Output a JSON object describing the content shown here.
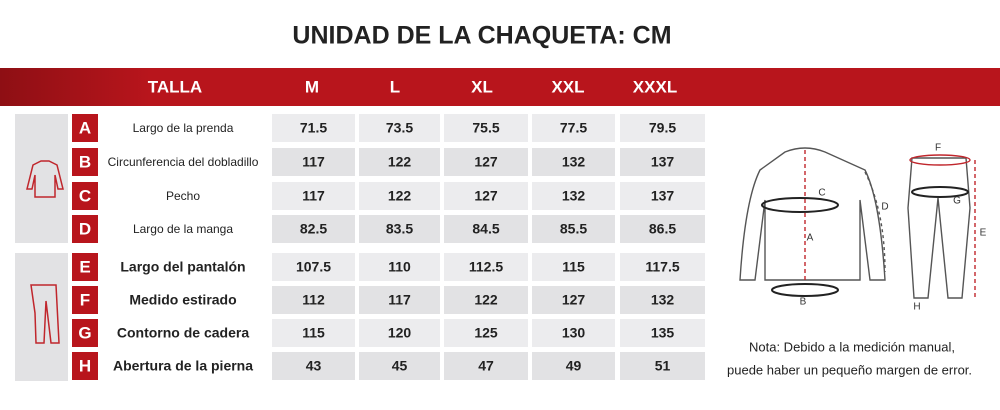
{
  "title": "UNIDAD DE LA CHAQUETA: CM",
  "table": {
    "header": [
      "TALLA",
      "M",
      "L",
      "XL",
      "XXL",
      "XXXL"
    ],
    "rows": [
      {
        "key": "A",
        "label": "Largo de la prenda",
        "values": [
          71.5,
          73.5,
          75.5,
          77.5,
          79.5
        ]
      },
      {
        "key": "B",
        "label": "Circunferencia del dobladillo",
        "values": [
          117,
          122,
          127,
          132,
          137
        ]
      },
      {
        "key": "C",
        "label": "Pecho",
        "values": [
          117,
          122,
          127,
          132,
          137
        ]
      },
      {
        "key": "D",
        "label": "Largo de la manga",
        "values": [
          82.5,
          83.5,
          84.5,
          85.5,
          86.5
        ]
      },
      {
        "key": "E",
        "label": "Largo del pantalón",
        "values": [
          107.5,
          110,
          112.5,
          115,
          117.5
        ]
      },
      {
        "key": "F",
        "label": "Medido estirado",
        "values": [
          112,
          117,
          122,
          127,
          132
        ]
      },
      {
        "key": "G",
        "label": "Contorno de cadera",
        "values": [
          115,
          120,
          125,
          130,
          135
        ]
      },
      {
        "key": "H",
        "label": "Abertura de la pierna",
        "values": [
          43,
          45,
          47,
          49,
          51
        ]
      }
    ]
  },
  "diagram": {
    "labels": [
      "C",
      "A",
      "B",
      "D",
      "F",
      "G",
      "E",
      "H"
    ]
  },
  "note": [
    "Nota: Debido a la medición manual,",
    "puede haber un pequeño margen de error."
  ]
}
